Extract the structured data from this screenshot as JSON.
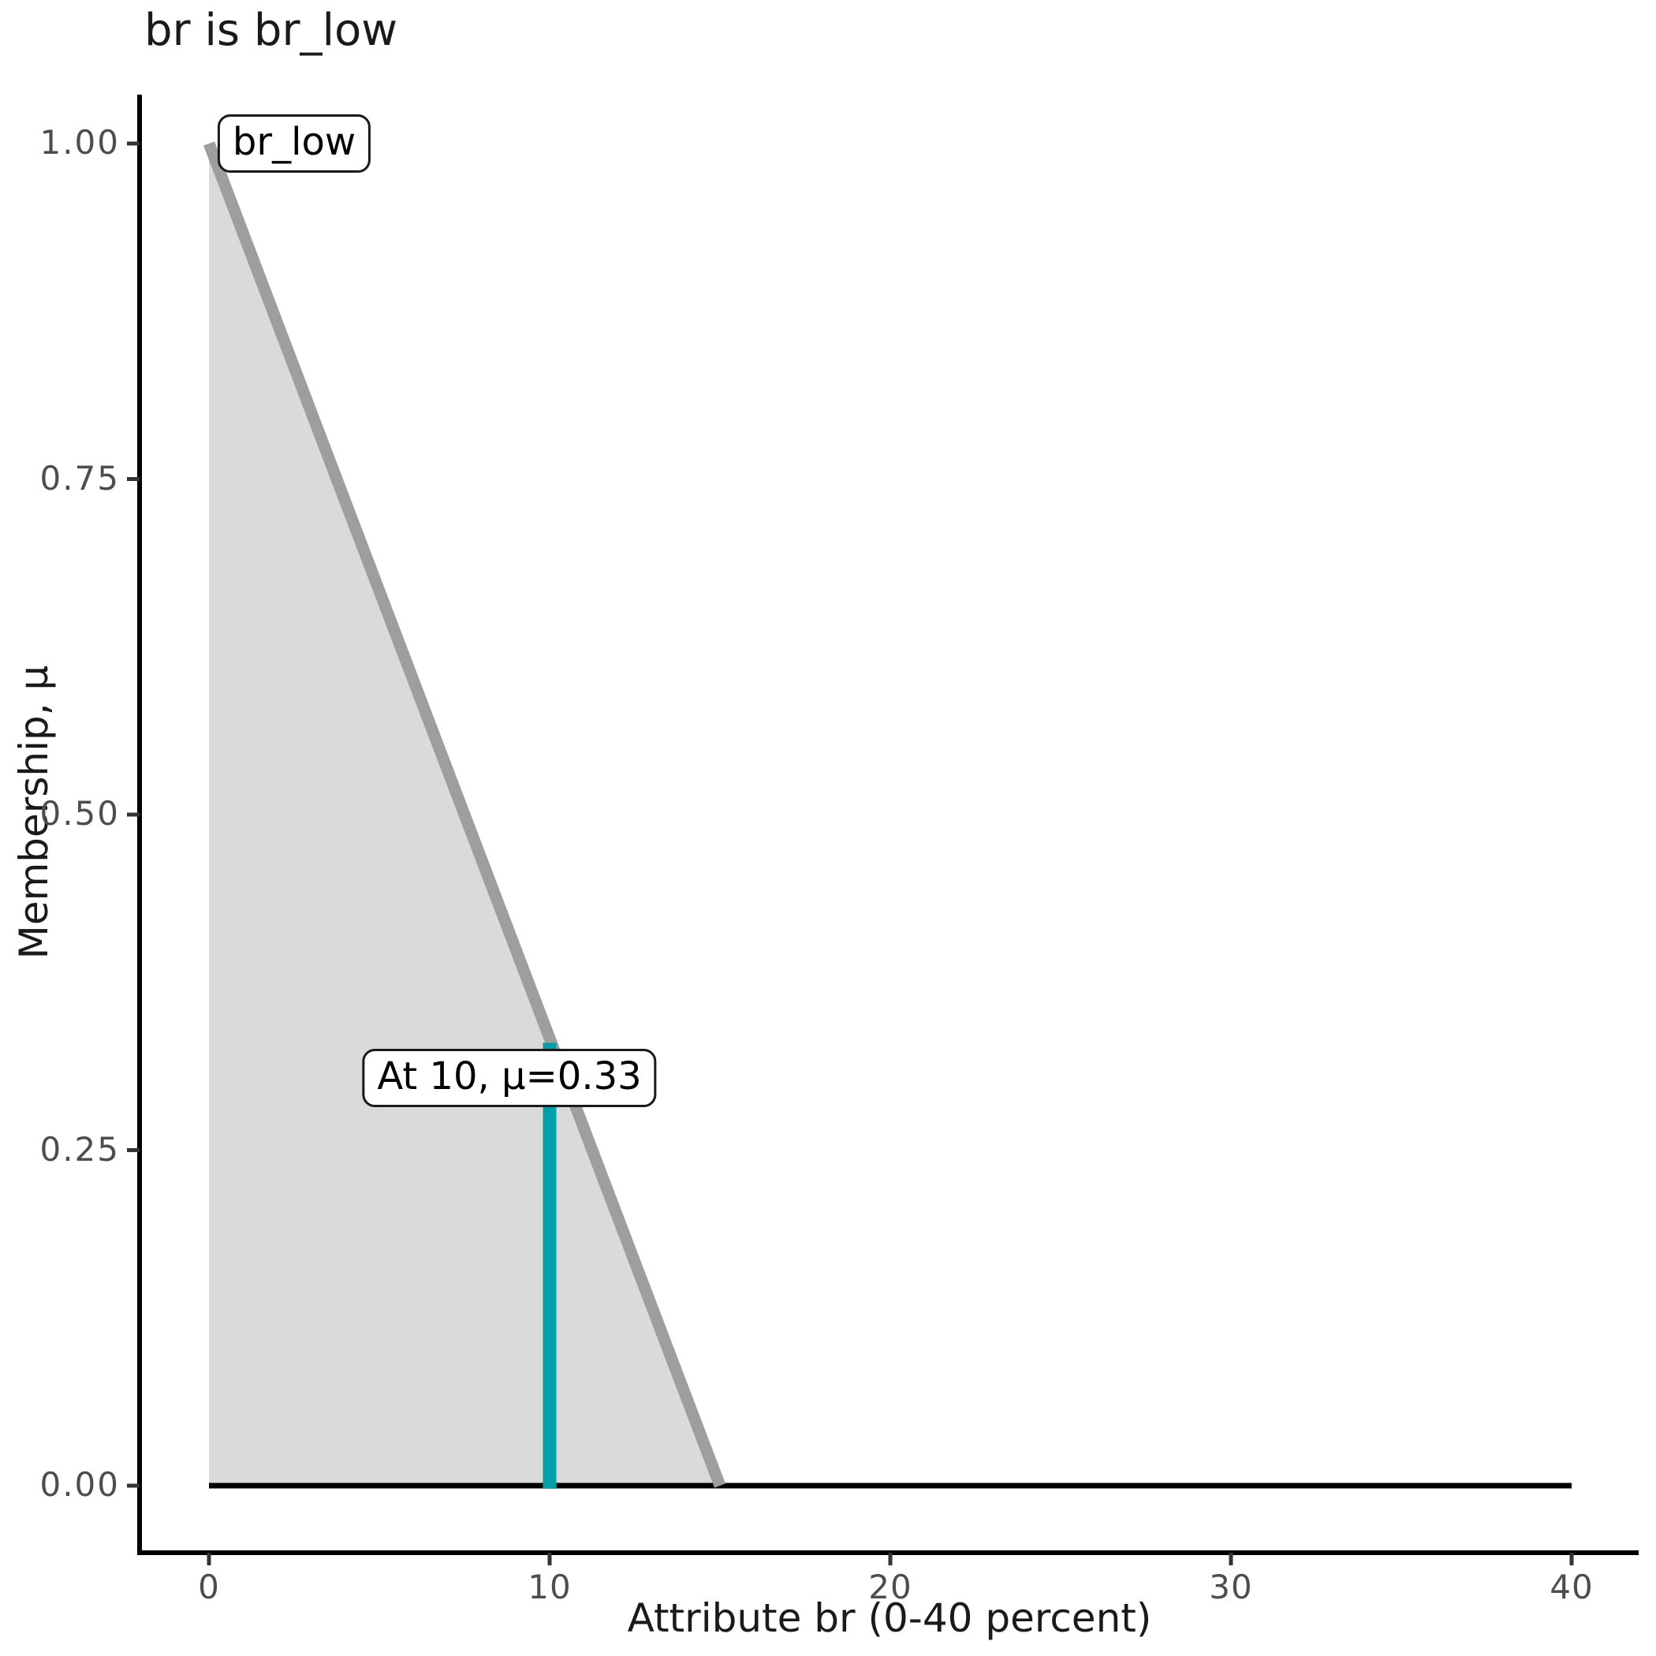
{
  "chart_data": {
    "type": "area",
    "title": "br is br_low",
    "xlabel": "Attribute br (0-40 percent)",
    "ylabel": "Membership, μ",
    "xlim": [
      0,
      40
    ],
    "ylim": [
      0,
      1
    ],
    "grid": false,
    "legend": "none",
    "x_tick_values": [
      0,
      10,
      20,
      30,
      40
    ],
    "x_tick_labels": [
      "0",
      "10",
      "20",
      "30",
      "40"
    ],
    "y_tick_values": [
      0,
      0.25,
      0.5,
      0.75,
      1
    ],
    "y_tick_labels": [
      "0.00",
      "0.25",
      "0.50",
      "0.75",
      "1.00"
    ],
    "membership_function": {
      "name": "br_low",
      "points": [
        [
          0,
          1
        ],
        [
          15,
          0
        ]
      ],
      "fill_polygon": [
        [
          0,
          0
        ],
        [
          0,
          1
        ],
        [
          15,
          0
        ]
      ]
    },
    "baseline": {
      "points": [
        [
          0,
          0
        ],
        [
          40,
          0
        ]
      ]
    },
    "highlight": {
      "x": 10,
      "mu": 0.33
    },
    "annotations": [
      {
        "text": "br_low",
        "x": 2.5,
        "mu": 1.0
      },
      {
        "text": "At 10, μ=0.33",
        "x": 8.82,
        "mu": 0.304
      }
    ]
  },
  "colors": {
    "membership_line": "#9e9e9e",
    "membership_fill": "#dadada",
    "highlight": "#00a0a8",
    "baseline": "#000000",
    "axis": "#000000",
    "tick": "#333333",
    "tick_label": "#4d4d4d",
    "text": "#1a1a1a"
  }
}
